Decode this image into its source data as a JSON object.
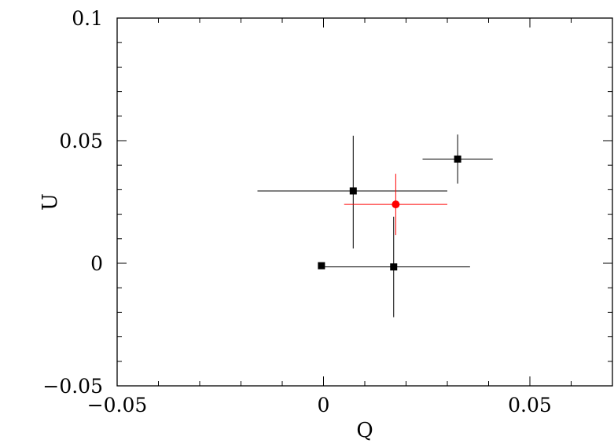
{
  "chart_data": {
    "type": "scatter",
    "title": "",
    "xlabel": "Q",
    "ylabel": "U",
    "xlim": [
      -0.05,
      0.07
    ],
    "ylim": [
      -0.05,
      0.1
    ],
    "grid": false,
    "x_ticks": [
      {
        "value": -0.05,
        "label": "−0.05"
      },
      {
        "value": 0,
        "label": "0"
      },
      {
        "value": 0.05,
        "label": "0.05"
      }
    ],
    "y_ticks": [
      {
        "value": -0.05,
        "label": "−0.05"
      },
      {
        "value": 0,
        "label": "0"
      },
      {
        "value": 0.05,
        "label": "0.05"
      },
      {
        "value": 0.1,
        "label": "0.1"
      }
    ],
    "x_minor_step": 0.01,
    "y_minor_step": 0.01,
    "series": [
      {
        "color": "#000000",
        "marker": "square",
        "points": [
          {
            "x": -0.0005,
            "y": -0.001,
            "xerr_minus": 0.0,
            "xerr_plus": 0.0,
            "yerr_minus": 0.0,
            "yerr_plus": 0.0
          },
          {
            "x": 0.017,
            "y": -0.0015,
            "xerr_minus": 0.018,
            "xerr_plus": 0.0185,
            "yerr_minus": 0.0205,
            "yerr_plus": 0.0205
          },
          {
            "x": 0.0072,
            "y": 0.0295,
            "xerr_minus": 0.0232,
            "xerr_plus": 0.0228,
            "yerr_minus": 0.0235,
            "yerr_plus": 0.0225
          },
          {
            "x": 0.0325,
            "y": 0.0425,
            "xerr_minus": 0.0085,
            "xerr_plus": 0.0085,
            "yerr_minus": 0.01,
            "yerr_plus": 0.01
          }
        ]
      },
      {
        "color": "#ff0000",
        "marker": "circle",
        "points": [
          {
            "x": 0.0175,
            "y": 0.024,
            "xerr_minus": 0.0125,
            "xerr_plus": 0.0125,
            "yerr_minus": 0.0125,
            "yerr_plus": 0.0125
          }
        ]
      }
    ]
  }
}
